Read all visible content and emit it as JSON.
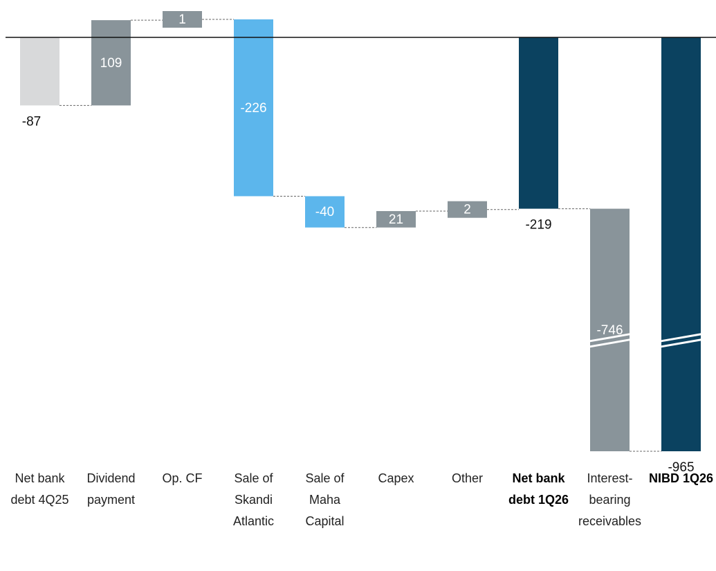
{
  "chart_data": {
    "type": "waterfall",
    "categories": [
      "Net bank debt 4Q25",
      "Dividend payment",
      "Op. CF",
      "Sale of Skandi Atlantic",
      "Sale of Maha Capital",
      "Capex",
      "Other",
      "Net bank debt 1Q26",
      "Interest-bearing receivables",
      "NIBD 1Q26"
    ],
    "values": [
      -87,
      109,
      1,
      -226,
      -40,
      21,
      2,
      -219,
      -746,
      -965
    ],
    "measures": [
      "absolute",
      "relative",
      "relative",
      "relative",
      "relative",
      "relative",
      "relative",
      "total",
      "relative",
      "total"
    ],
    "colors": [
      "#d8d9da",
      "#89949a",
      "#89949a",
      "#5cb6ec",
      "#5cb6ec",
      "#89949a",
      "#89949a",
      "#0b4260",
      "#89949a",
      "#0b4260"
    ],
    "label_positions": [
      "below",
      "inside",
      "inside",
      "inside",
      "inside",
      "inside",
      "inside",
      "below",
      "inside",
      "below"
    ],
    "axis_break": true
  }
}
